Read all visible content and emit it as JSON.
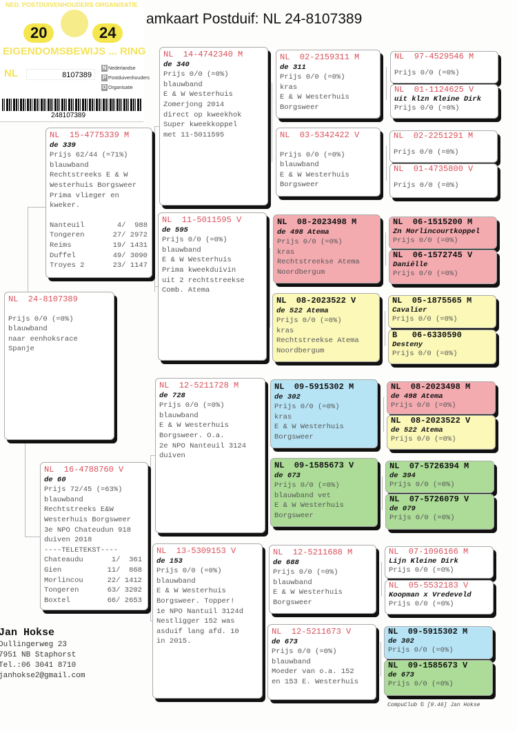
{
  "title": "amkaart Postduif: NL  24-8107389",
  "ring_card": {
    "organisation": "NED. POSTDUIVENHOUDERS ORGANISATIE",
    "year_left": "20",
    "year_right": "24",
    "certificate": "EIGENDOMSBEWIJS ... RING",
    "country": "NL",
    "ring_number": "8107389",
    "npo_lines": [
      "Nederlandse",
      "Postduivenhouders",
      "Organisatie"
    ],
    "npo_letters": [
      "N",
      "P",
      "O"
    ],
    "barcode_number": "248107389"
  },
  "colors": {
    "pink": "#f4abb0",
    "yellow": "#fbf8b8",
    "blue": "#b7e4f5",
    "green": "#acdc97",
    "ring_red": "#d9505a"
  },
  "cards": [
    {
      "ring": "NL  24-8107389",
      "name": "",
      "lines": [
        "",
        "Prijs 0/0 (=0%)",
        "blauwband",
        "naar eenhoksrace",
        "Spanje"
      ]
    },
    {
      "ring": "NL  15-4775339 M",
      "name": "de 339",
      "lines": [
        "Prijs 62/44 (=71%)",
        "blauwband",
        "Rechtstreeks E & W",
        "Westerhuis Borgsweer",
        "Prima vlieger en",
        "kweker.",
        ""
      ],
      "results": [
        {
          "race": "Nanteuil",
          "place": "4/  988"
        },
        {
          "race": "Tongeren",
          "place": "27/ 2972"
        },
        {
          "race": "Reims",
          "place": "19/ 1431"
        },
        {
          "race": "Duffel",
          "place": "49/ 3090"
        },
        {
          "race": "Troyes 2",
          "place": "23/ 1147"
        }
      ]
    },
    {
      "ring": "NL  16-4788760 V",
      "name": "de 60",
      "lines": [
        "Prijs 72/45 (=63%)",
        "blauwband",
        "Rechtstreeks E&W",
        "Westerhuis Borgsweer",
        "3e NPO Chateudun 918",
        "duiven 2018",
        "----TELETEKST----"
      ],
      "results": [
        {
          "race": "Chateaudu",
          "place": "1/  361"
        },
        {
          "race": "Gien",
          "place": "11/  868"
        },
        {
          "race": "Morlincou",
          "place": "22/ 1412"
        },
        {
          "race": "Tongeren",
          "place": "63/ 3202"
        },
        {
          "race": "Boxtel",
          "place": "66/ 2653"
        }
      ]
    },
    {
      "ring": "NL  14-4742340 M",
      "name": "de 340",
      "lines": [
        "Prijs 0/0 (=0%)",
        "blauwband",
        "E & W Westerhuis",
        "Zomerjong 2014",
        "direct op kweekhok",
        "Super kweekkoppel",
        "met 11-5011595"
      ]
    },
    {
      "ring": "NL  11-5011595 V",
      "name": "de 595",
      "lines": [
        "Prijs 0/0 (=0%)",
        "blauwband",
        "E & W Westerhuis",
        "Prima kweekduivin",
        "uit 2 rechtstreekse",
        "Comb. Atema"
      ]
    },
    {
      "ring": "NL  12-5211728 M",
      "name": "de 728",
      "lines": [
        "Prijs 0/0 (=0%)",
        "blauwband",
        "E & W Westerhuis",
        "Borgsweer. O.a.",
        "2e NPO Nanteuil 3124",
        "duiven"
      ]
    },
    {
      "ring": "NL  13-5309153 V",
      "name": "de 153",
      "lines": [
        "Prijs 0/0 (=0%)",
        "blauwband",
        "E & W Westerhuis",
        "Borgsweer. Topper!",
        "1e NPO Nantuil 3124d",
        "Nestligger 152 was",
        "asduif lang afd. 10",
        "in 2015."
      ]
    },
    {
      "ring": "NL  02-2159311 M",
      "name": "de 311",
      "lines": [
        "Prijs 0/0 (=0%)",
        "kras",
        "E & W Westerhuis",
        "Borgsweer"
      ]
    },
    {
      "ring": "NL  03-5342422 V",
      "name": "",
      "lines": [
        "",
        "Prijs 0/0 (=0%)",
        "blauwband",
        "E & W Westerhuis",
        "Borgsweer"
      ]
    },
    {
      "ring": "NL  08-2023498 M",
      "name": "de 498 Atema",
      "color": "pink",
      "lines": [
        "Prijs 0/0 (=0%)",
        "kras",
        "Rechtstreekse Atema",
        "Noordbergum"
      ]
    },
    {
      "ring": "NL  08-2023522 V",
      "name": "de 522 Atema",
      "color": "yellow",
      "lines": [
        "Prijs 0/0 (=0%)",
        "kras",
        "Rechtstreekse Atema",
        "Noordbergum"
      ]
    },
    {
      "ring": "NL  09-5915302 M",
      "name": "de 302",
      "color": "blue",
      "lines": [
        "Prijs 0/0 (=0%)",
        "kras",
        "E & W Westerhuis",
        "Borgsweer"
      ]
    },
    {
      "ring": "NL  09-1585673 V",
      "name": "de 673",
      "color": "green",
      "lines": [
        "Prijs 0/0 (=0%)",
        "blauwband vet",
        "E & W Westerhuis",
        "Borgsweer"
      ]
    },
    {
      "ring": "NL  12-5211688 M",
      "name": "de 688",
      "lines": [
        "Prijs 0/0 (=0%)",
        "blauwband",
        "E & W Westerhuis",
        "Borgsweer"
      ]
    },
    {
      "ring": "NL  12-5211673 V",
      "name": "de 673",
      "lines": [
        "Prijs 0/0 (=0%)",
        "blauwband",
        "Moeder van o.a. 152",
        "en 153 E. Westerhuis"
      ]
    },
    {
      "ring": "NL  97-4529546 M",
      "name": "",
      "lines": [
        "",
        "Prijs 0/0 (=0%)"
      ]
    },
    {
      "ring": "NL  01-1124625 V",
      "name": "uit klzn Kleine Dirk",
      "lines": [
        "Prijs 0/0 (=0%)"
      ]
    },
    {
      "ring": "NL  02-2251291 M",
      "name": "",
      "lines": [
        "",
        "Prijs 0/0 (=0%)"
      ]
    },
    {
      "ring": "NL  01-4735800 V",
      "name": "",
      "lines": [
        "",
        "Prijs 0/0 (=0%)"
      ]
    },
    {
      "ring": "NL  06-1515200 M",
      "name": "Zn Morlincourtkoppel",
      "color": "pink",
      "lines": [
        "Prijs 0/0 (=0%)"
      ]
    },
    {
      "ring": "NL  06-1572745 V",
      "name": "Daniëlle",
      "color": "pink",
      "lines": [
        "Prijs 0/0 (=0%)"
      ]
    },
    {
      "ring": "NL  05-1875565 M",
      "name": "Cavalier",
      "color": "yellow",
      "lines": [
        "Prijs 0/0 (=0%)"
      ]
    },
    {
      "ring": "B   06-6330590",
      "name": "Desteny",
      "color": "yellow",
      "lines": [
        "Prijs 0/0 (=0%)"
      ]
    },
    {
      "ring": "NL  08-2023498 M",
      "name": "de 498 Atema",
      "color": "pink",
      "lines": [
        "Prijs 0/0 (=0%)"
      ]
    },
    {
      "ring": "NL  08-2023522 V",
      "name": "de 522 Atema",
      "color": "yellow",
      "lines": [
        "Prijs 0/0 (=0%)"
      ]
    },
    {
      "ring": "NL  07-5726394 M",
      "name": "de 394",
      "color": "green",
      "lines": [
        "Prijs 0/0 (=0%)"
      ]
    },
    {
      "ring": "NL  07-5726079 V",
      "name": "de 079",
      "color": "green",
      "lines": [
        "Prijs 0/0 (=0%)"
      ]
    },
    {
      "ring": "NL  07-1096166 M",
      "name": "Lijn Kleine Dirk",
      "lines": [
        "Prijs 0/0 (=0%)"
      ]
    },
    {
      "ring": "NL  05-5532183 V",
      "name": "Koopman x Vredeveld",
      "lines": [
        "Prijs 0/0 (=0%)"
      ]
    },
    {
      "ring": "NL  09-5915302 M",
      "name": "de 302",
      "color": "blue",
      "lines": [
        "Prijs 0/0 (=0%)"
      ]
    },
    {
      "ring": "NL  09-1585673 V",
      "name": "de 673",
      "color": "green",
      "lines": [
        "Prijs 0/0 (=0%)"
      ]
    }
  ],
  "owner": {
    "name": "Jan Hokse",
    "address": "Dullingerweg 23",
    "city": "7951 NB  Staphorst",
    "phone": "Tel.:06 3041 8710",
    "email": "janhokse2@gmail.com"
  },
  "footer": "CompuClub © [9.46]  Jan Hokse"
}
